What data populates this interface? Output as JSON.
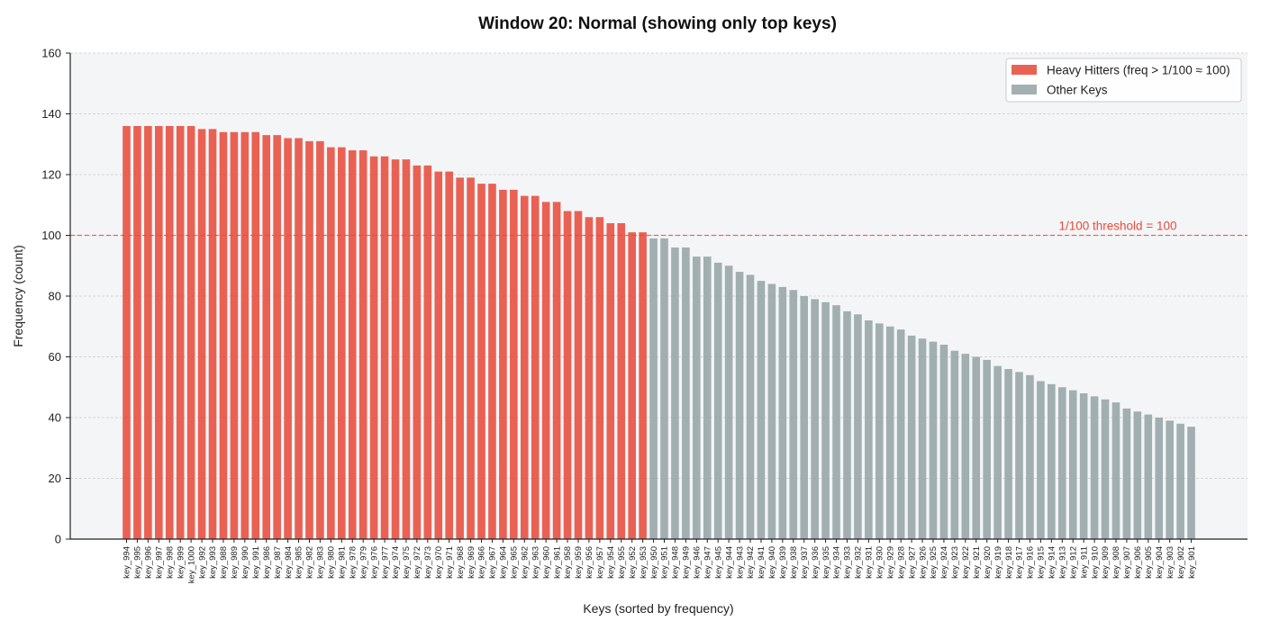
{
  "chart_data": {
    "type": "bar",
    "title": "Window 20: Normal (showing only top keys)",
    "xlabel": "Keys (sorted by frequency)",
    "ylabel": "Frequency (count)",
    "ylim": [
      0,
      160
    ],
    "yticks": [
      0,
      20,
      40,
      60,
      80,
      100,
      120,
      140,
      160
    ],
    "grid": true,
    "legend_position": "top-right",
    "threshold": {
      "value": 100,
      "label": "1/100 threshold = 100",
      "color": "#e74c3c"
    },
    "colors": {
      "heavy": "#e74c3c",
      "other": "#95a5a6",
      "plot_bg": "#f4f5f7"
    },
    "legend": [
      {
        "label": "Heavy Hitters (freq > 1/100 ≈ 100)",
        "color": "#e74c3c"
      },
      {
        "label": "Other Keys",
        "color": "#95a5a6"
      }
    ],
    "categories": [
      "key_994",
      "key_995",
      "key_996",
      "key_997",
      "key_998",
      "key_999",
      "key_1000",
      "key_992",
      "key_993",
      "key_988",
      "key_989",
      "key_990",
      "key_991",
      "key_986",
      "key_987",
      "key_984",
      "key_985",
      "key_982",
      "key_983",
      "key_980",
      "key_981",
      "key_978",
      "key_979",
      "key_976",
      "key_977",
      "key_974",
      "key_975",
      "key_972",
      "key_973",
      "key_970",
      "key_971",
      "key_968",
      "key_969",
      "key_966",
      "key_967",
      "key_964",
      "key_965",
      "key_962",
      "key_963",
      "key_960",
      "key_961",
      "key_958",
      "key_959",
      "key_956",
      "key_957",
      "key_954",
      "key_955",
      "key_952",
      "key_953",
      "key_950",
      "key_951",
      "key_948",
      "key_949",
      "key_946",
      "key_947",
      "key_945",
      "key_944",
      "key_943",
      "key_942",
      "key_941",
      "key_940",
      "key_939",
      "key_938",
      "key_937",
      "key_936",
      "key_935",
      "key_934",
      "key_933",
      "key_932",
      "key_931",
      "key_930",
      "key_929",
      "key_928",
      "key_927",
      "key_926",
      "key_925",
      "key_924",
      "key_923",
      "key_922",
      "key_921",
      "key_920",
      "key_919",
      "key_918",
      "key_917",
      "key_916",
      "key_915",
      "key_914",
      "key_913",
      "key_912",
      "key_911",
      "key_910",
      "key_909",
      "key_908",
      "key_907",
      "key_906",
      "key_905",
      "key_904",
      "key_903",
      "key_902",
      "key_901"
    ],
    "values": [
      136,
      136,
      136,
      136,
      136,
      136,
      136,
      135,
      135,
      134,
      134,
      134,
      134,
      133,
      133,
      132,
      132,
      131,
      131,
      129,
      129,
      128,
      128,
      126,
      126,
      125,
      125,
      123,
      123,
      121,
      121,
      119,
      119,
      117,
      117,
      115,
      115,
      113,
      113,
      111,
      111,
      108,
      108,
      106,
      106,
      104,
      104,
      101,
      101,
      99,
      99,
      96,
      96,
      93,
      93,
      91,
      90,
      88,
      87,
      85,
      84,
      83,
      82,
      80,
      79,
      78,
      77,
      75,
      74,
      72,
      71,
      70,
      69,
      67,
      66,
      65,
      64,
      62,
      61,
      60,
      59,
      57,
      56,
      55,
      54,
      52,
      51,
      50,
      49,
      48,
      47,
      46,
      45,
      43,
      42,
      41,
      40,
      39,
      38,
      37
    ],
    "heavy_count": 49
  }
}
